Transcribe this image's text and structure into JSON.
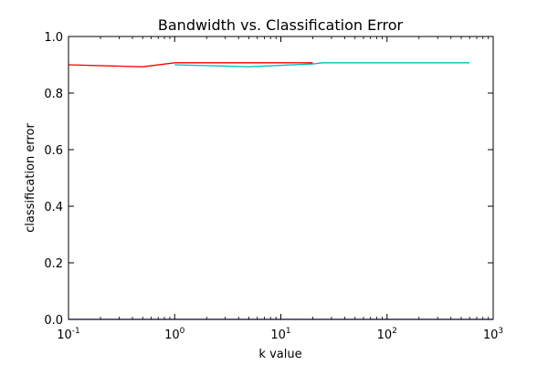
{
  "chart_data": {
    "type": "line",
    "title": "Bandwidth vs. Classification Error",
    "xlabel": "k value",
    "ylabel": "classification error",
    "x_scale": "log",
    "xlim": [
      0.1,
      1000
    ],
    "ylim": [
      0.0,
      1.0
    ],
    "x_ticks": [
      {
        "value": 0.1,
        "base": "10",
        "exp": "-1"
      },
      {
        "value": 1,
        "base": "10",
        "exp": "0"
      },
      {
        "value": 10,
        "base": "10",
        "exp": "1"
      },
      {
        "value": 100,
        "base": "10",
        "exp": "2"
      },
      {
        "value": 1000,
        "base": "10",
        "exp": "3"
      }
    ],
    "y_ticks": [
      {
        "value": 0.0,
        "label": "0.0"
      },
      {
        "value": 0.2,
        "label": "0.2"
      },
      {
        "value": 0.4,
        "label": "0.4"
      },
      {
        "value": 0.6,
        "label": "0.6"
      },
      {
        "value": 0.8,
        "label": "0.8"
      },
      {
        "value": 1.0,
        "label": "1.0"
      }
    ],
    "grid": false,
    "series": [
      {
        "color": "#ff0000",
        "x": [
          0.1,
          0.5,
          1,
          5,
          10,
          20
        ],
        "y": [
          0.9,
          0.893,
          0.907,
          0.907,
          0.907,
          0.907
        ]
      },
      {
        "color": "#00bfbf",
        "x": [
          1,
          5,
          20,
          25,
          50,
          100,
          600
        ],
        "y": [
          0.9,
          0.893,
          0.903,
          0.907,
          0.907,
          0.907,
          0.907
        ]
      },
      {
        "color": "#0000ff",
        "x": [
          0.1,
          1000
        ],
        "y": [
          0.0,
          0.0
        ]
      }
    ]
  }
}
